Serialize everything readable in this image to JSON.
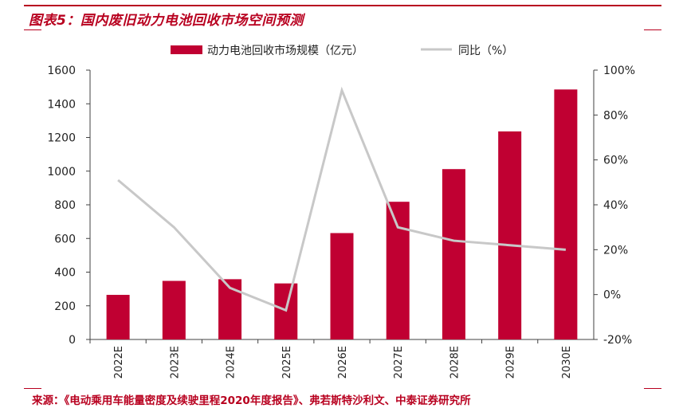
{
  "figure": {
    "title": "图表5：国内废旧动力电池回收市场空间预测",
    "source": "来源：《电动乘用车能量密度及续驶里程2020年度报告》、弗若斯特沙利文、中泰证券研究所"
  },
  "colors": {
    "bar": "#c00032",
    "line": "#c8c8c8",
    "accent": "#b8001f",
    "axis": "#404040"
  },
  "chart_data": {
    "type": "bar",
    "categories": [
      "2022E",
      "2023E",
      "2024E",
      "2025E",
      "2026E",
      "2027E",
      "2028E",
      "2029E",
      "2030E"
    ],
    "series": [
      {
        "name": "动力电池回收市场规模（亿元）",
        "type": "bar",
        "axis": "left",
        "values": [
          265,
          348,
          358,
          333,
          632,
          818,
          1012,
          1236,
          1485
        ]
      },
      {
        "name": "同比（%）",
        "type": "line",
        "axis": "right",
        "values": [
          51,
          30,
          3,
          -7,
          91,
          30,
          24,
          22,
          20
        ]
      }
    ],
    "left_axis": {
      "min": 0,
      "max": 1600,
      "ticks": [
        "0",
        "200",
        "400",
        "600",
        "800",
        "1000",
        "1200",
        "1400",
        "1600"
      ]
    },
    "right_axis": {
      "min": -20,
      "max": 100,
      "ticks": [
        "-20%",
        "0%",
        "20%",
        "40%",
        "60%",
        "80%",
        "100%"
      ]
    },
    "legend_position": "top",
    "grid": false
  }
}
